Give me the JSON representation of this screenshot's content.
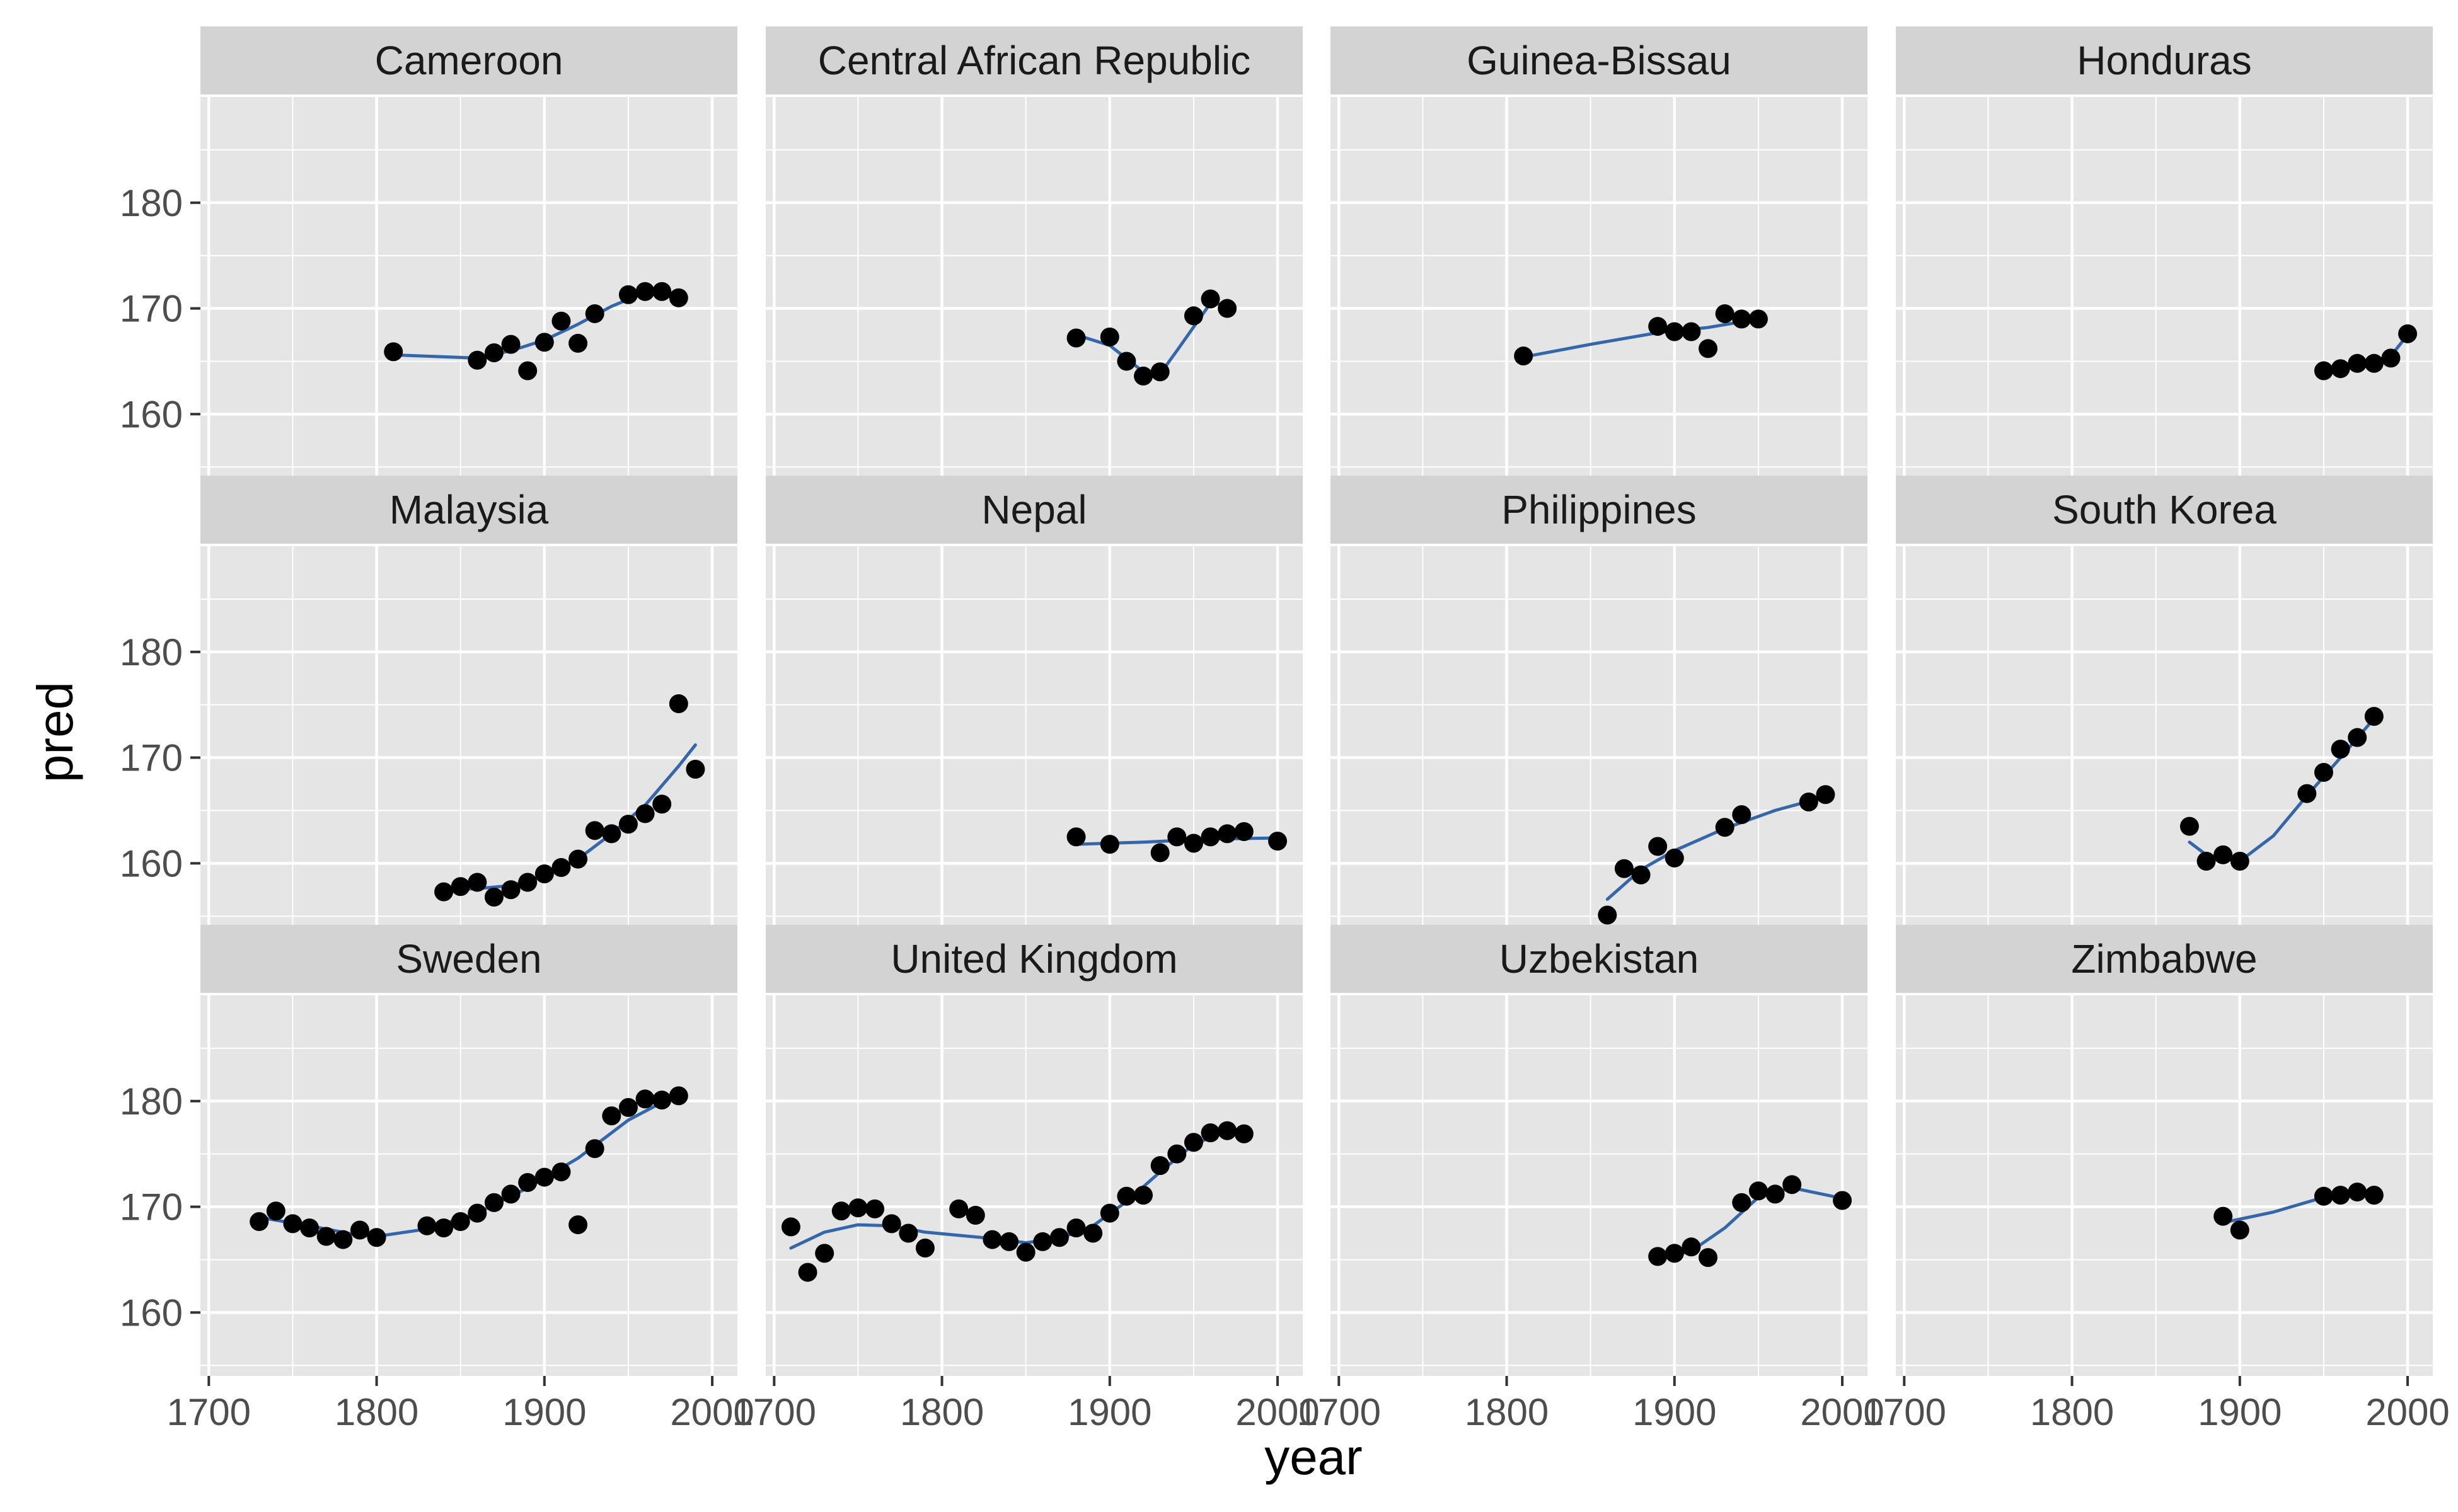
{
  "chart_data": {
    "type": "scatter",
    "layout": "facet-grid",
    "xlabel": "year",
    "ylabel": "pred",
    "xlim": [
      1695,
      2015
    ],
    "ylim": [
      154,
      190
    ],
    "x_ticks": [
      1700,
      1800,
      1900,
      2000
    ],
    "x_tick_labels": [
      "1700",
      "1800",
      "1900",
      "2000"
    ],
    "y_ticks": [
      160,
      170,
      180
    ],
    "y_tick_labels": [
      "160",
      "170",
      "180"
    ],
    "grid": true,
    "point_color": "#000000",
    "line_color": "#3366aa",
    "panel_bg": "#e5e5e5",
    "strip_bg": "#d3d3d3",
    "panels": [
      {
        "name": "Cameroon",
        "points": [
          [
            1810,
            165.9
          ],
          [
            1860,
            165.1
          ],
          [
            1870,
            165.8
          ],
          [
            1880,
            166.6
          ],
          [
            1890,
            164.1
          ],
          [
            1900,
            166.8
          ],
          [
            1910,
            168.8
          ],
          [
            1920,
            166.7
          ],
          [
            1930,
            169.5
          ],
          [
            1950,
            171.3
          ],
          [
            1960,
            171.6
          ],
          [
            1970,
            171.6
          ],
          [
            1980,
            171.0
          ]
        ],
        "trend": [
          [
            1810,
            165.6
          ],
          [
            1860,
            165.3
          ],
          [
            1880,
            166.0
          ],
          [
            1900,
            167.0
          ],
          [
            1920,
            168.5
          ],
          [
            1940,
            170.2
          ],
          [
            1960,
            171.5
          ],
          [
            1980,
            171.2
          ]
        ]
      },
      {
        "name": "Central African Republic",
        "points": [
          [
            1880,
            167.2
          ],
          [
            1900,
            167.3
          ],
          [
            1910,
            165.0
          ],
          [
            1920,
            163.6
          ],
          [
            1930,
            164.0
          ],
          [
            1950,
            169.3
          ],
          [
            1960,
            170.9
          ],
          [
            1970,
            170.0
          ]
        ],
        "trend": [
          [
            1880,
            167.5
          ],
          [
            1900,
            166.5
          ],
          [
            1920,
            164.0
          ],
          [
            1930,
            163.8
          ],
          [
            1940,
            166.0
          ],
          [
            1960,
            170.5
          ],
          [
            1970,
            170.3
          ]
        ]
      },
      {
        "name": "Guinea-Bissau",
        "points": [
          [
            1810,
            165.5
          ],
          [
            1890,
            168.3
          ],
          [
            1900,
            167.8
          ],
          [
            1910,
            167.8
          ],
          [
            1920,
            166.2
          ],
          [
            1930,
            169.5
          ],
          [
            1940,
            169.0
          ],
          [
            1950,
            169.0
          ]
        ],
        "trend": [
          [
            1810,
            165.4
          ],
          [
            1850,
            166.6
          ],
          [
            1890,
            167.7
          ],
          [
            1920,
            168.2
          ],
          [
            1950,
            169.0
          ]
        ]
      },
      {
        "name": "Honduras",
        "points": [
          [
            1950,
            164.1
          ],
          [
            1960,
            164.3
          ],
          [
            1970,
            164.8
          ],
          [
            1980,
            164.8
          ],
          [
            1990,
            165.3
          ],
          [
            2000,
            167.6
          ]
        ],
        "trend": [
          [
            1950,
            163.9
          ],
          [
            1970,
            164.5
          ],
          [
            1990,
            165.5
          ],
          [
            2000,
            167.5
          ]
        ]
      },
      {
        "name": "Malaysia",
        "points": [
          [
            1840,
            157.3
          ],
          [
            1850,
            157.8
          ],
          [
            1860,
            158.2
          ],
          [
            1870,
            156.8
          ],
          [
            1880,
            157.5
          ],
          [
            1890,
            158.2
          ],
          [
            1900,
            159.0
          ],
          [
            1910,
            159.6
          ],
          [
            1920,
            160.4
          ],
          [
            1930,
            163.1
          ],
          [
            1940,
            162.8
          ],
          [
            1950,
            163.7
          ],
          [
            1960,
            164.7
          ],
          [
            1970,
            165.6
          ],
          [
            1980,
            175.1
          ],
          [
            1990,
            168.9
          ]
        ],
        "trend": [
          [
            1840,
            157.5
          ],
          [
            1860,
            157.6
          ],
          [
            1880,
            157.9
          ],
          [
            1900,
            158.8
          ],
          [
            1920,
            160.4
          ],
          [
            1940,
            162.8
          ],
          [
            1960,
            165.5
          ],
          [
            1980,
            169.2
          ],
          [
            1990,
            171.2
          ]
        ]
      },
      {
        "name": "Nepal",
        "points": [
          [
            1880,
            162.5
          ],
          [
            1900,
            161.8
          ],
          [
            1930,
            161.0
          ],
          [
            1940,
            162.5
          ],
          [
            1950,
            161.9
          ],
          [
            1960,
            162.5
          ],
          [
            1970,
            162.8
          ],
          [
            1980,
            163.0
          ],
          [
            2000,
            162.1
          ]
        ],
        "trend": [
          [
            1880,
            161.8
          ],
          [
            1920,
            162.0
          ],
          [
            1960,
            162.3
          ],
          [
            2000,
            162.4
          ]
        ]
      },
      {
        "name": "Philippines",
        "points": [
          [
            1860,
            155.1
          ],
          [
            1870,
            159.5
          ],
          [
            1880,
            158.9
          ],
          [
            1890,
            161.6
          ],
          [
            1900,
            160.5
          ],
          [
            1930,
            163.4
          ],
          [
            1940,
            164.6
          ],
          [
            1980,
            165.8
          ],
          [
            1990,
            166.5
          ]
        ],
        "trend": [
          [
            1860,
            156.6
          ],
          [
            1880,
            159.4
          ],
          [
            1900,
            161.2
          ],
          [
            1930,
            163.3
          ],
          [
            1960,
            165.0
          ],
          [
            1990,
            166.3
          ]
        ]
      },
      {
        "name": "South Korea",
        "points": [
          [
            1870,
            163.5
          ],
          [
            1880,
            160.2
          ],
          [
            1890,
            160.8
          ],
          [
            1900,
            160.2
          ],
          [
            1940,
            166.6
          ],
          [
            1950,
            168.6
          ],
          [
            1960,
            170.8
          ],
          [
            1970,
            171.9
          ],
          [
            1980,
            173.9
          ]
        ],
        "trend": [
          [
            1870,
            162.0
          ],
          [
            1880,
            160.8
          ],
          [
            1900,
            160.2
          ],
          [
            1920,
            162.6
          ],
          [
            1940,
            166.4
          ],
          [
            1960,
            170.0
          ],
          [
            1980,
            173.7
          ]
        ]
      },
      {
        "name": "Sweden",
        "points": [
          [
            1730,
            168.6
          ],
          [
            1740,
            169.6
          ],
          [
            1750,
            168.4
          ],
          [
            1760,
            168.0
          ],
          [
            1770,
            167.2
          ],
          [
            1780,
            166.9
          ],
          [
            1790,
            167.8
          ],
          [
            1800,
            167.1
          ],
          [
            1830,
            168.2
          ],
          [
            1840,
            168.0
          ],
          [
            1850,
            168.6
          ],
          [
            1860,
            169.4
          ],
          [
            1870,
            170.4
          ],
          [
            1880,
            171.2
          ],
          [
            1890,
            172.3
          ],
          [
            1900,
            172.8
          ],
          [
            1910,
            173.3
          ],
          [
            1920,
            168.3
          ],
          [
            1930,
            175.5
          ],
          [
            1940,
            178.6
          ],
          [
            1950,
            179.4
          ],
          [
            1960,
            180.2
          ],
          [
            1970,
            180.1
          ],
          [
            1980,
            180.5
          ]
        ],
        "trend": [
          [
            1730,
            169.0
          ],
          [
            1760,
            168.2
          ],
          [
            1790,
            167.3
          ],
          [
            1800,
            167.2
          ],
          [
            1830,
            167.9
          ],
          [
            1860,
            169.4
          ],
          [
            1890,
            171.8
          ],
          [
            1920,
            174.6
          ],
          [
            1950,
            178.2
          ],
          [
            1980,
            180.7
          ]
        ]
      },
      {
        "name": "United Kingdom",
        "points": [
          [
            1710,
            168.1
          ],
          [
            1720,
            163.8
          ],
          [
            1730,
            165.6
          ],
          [
            1740,
            169.6
          ],
          [
            1750,
            169.9
          ],
          [
            1760,
            169.8
          ],
          [
            1770,
            168.4
          ],
          [
            1780,
            167.5
          ],
          [
            1790,
            166.1
          ],
          [
            1810,
            169.8
          ],
          [
            1820,
            169.2
          ],
          [
            1830,
            166.9
          ],
          [
            1840,
            166.7
          ],
          [
            1850,
            165.7
          ],
          [
            1860,
            166.7
          ],
          [
            1870,
            167.1
          ],
          [
            1880,
            168.0
          ],
          [
            1890,
            167.5
          ],
          [
            1900,
            169.4
          ],
          [
            1910,
            171.0
          ],
          [
            1920,
            171.1
          ],
          [
            1930,
            173.9
          ],
          [
            1940,
            175.0
          ],
          [
            1950,
            176.1
          ],
          [
            1960,
            177.0
          ],
          [
            1970,
            177.2
          ],
          [
            1980,
            176.9
          ]
        ],
        "trend": [
          [
            1710,
            166.1
          ],
          [
            1730,
            167.6
          ],
          [
            1750,
            168.3
          ],
          [
            1770,
            168.2
          ],
          [
            1790,
            167.6
          ],
          [
            1810,
            167.3
          ],
          [
            1830,
            167.0
          ],
          [
            1850,
            166.6
          ],
          [
            1870,
            167.0
          ],
          [
            1890,
            168.2
          ],
          [
            1910,
            170.5
          ],
          [
            1930,
            173.3
          ],
          [
            1950,
            175.9
          ],
          [
            1970,
            177.2
          ],
          [
            1980,
            177.4
          ]
        ]
      },
      {
        "name": "Uzbekistan",
        "points": [
          [
            1890,
            165.3
          ],
          [
            1900,
            165.6
          ],
          [
            1910,
            166.2
          ],
          [
            1920,
            165.2
          ],
          [
            1940,
            170.4
          ],
          [
            1950,
            171.5
          ],
          [
            1960,
            171.2
          ],
          [
            1970,
            172.1
          ],
          [
            2000,
            170.6
          ]
        ],
        "trend": [
          [
            1890,
            165.1
          ],
          [
            1910,
            165.8
          ],
          [
            1930,
            168.0
          ],
          [
            1950,
            170.9
          ],
          [
            1970,
            171.8
          ],
          [
            2000,
            170.8
          ]
        ]
      },
      {
        "name": "Zimbabwe",
        "points": [
          [
            1890,
            169.1
          ],
          [
            1900,
            167.8
          ],
          [
            1950,
            171.0
          ],
          [
            1960,
            171.1
          ],
          [
            1970,
            171.4
          ],
          [
            1980,
            171.1
          ]
        ],
        "trend": [
          [
            1890,
            168.5
          ],
          [
            1920,
            169.5
          ],
          [
            1950,
            170.9
          ],
          [
            1980,
            171.3
          ]
        ]
      }
    ]
  }
}
